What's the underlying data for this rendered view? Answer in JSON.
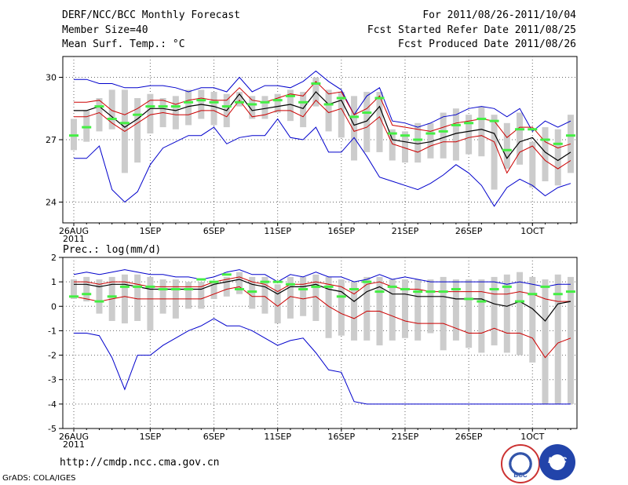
{
  "header": {
    "title": "DERF/NCC/BCC Monthly Forecast",
    "member_size": "Member Size=40",
    "variable": "Mean Surf. Temp.: °C",
    "period": "For 2011/08/26-2011/10/04",
    "started": "Fcst Started Refer Date 2011/08/25",
    "produced": "Fcst Produced Date 2011/08/26"
  },
  "footer": {
    "url": "http://cmdp.ncc.cma.gov.cn",
    "credit": "GrADS: COLA/IGES"
  },
  "logos": {
    "left": "BCC",
    "right": "NCC"
  },
  "colors": {
    "max_min": "#0000cc",
    "spread": "#cc0000",
    "mean": "#000000",
    "green": "#44ee44",
    "box": "#cccccc"
  },
  "chart_data": [
    {
      "type": "ensemble-plume",
      "title": "Mean Surf. Temp.: °C",
      "x_tick_labels": [
        "26AUG\n2011",
        "1SEP",
        "6SEP",
        "11SEP",
        "16SEP",
        "21SEP",
        "26SEP",
        "1OCT"
      ],
      "x_tick_days": [
        0,
        6,
        11,
        16,
        21,
        26,
        31,
        36
      ],
      "ylim": [
        23,
        31
      ],
      "y_ticks": [
        24,
        27,
        30
      ],
      "days": 40,
      "series": [
        {
          "name": "max",
          "values": [
            29.9,
            29.9,
            29.7,
            29.7,
            29.5,
            29.5,
            29.6,
            29.6,
            29.5,
            29.3,
            29.5,
            29.5,
            29.3,
            30.0,
            29.3,
            29.6,
            29.6,
            29.5,
            29.8,
            30.3,
            29.8,
            29.4,
            28.2,
            29.1,
            29.5,
            27.9,
            27.8,
            27.6,
            27.8,
            28.1,
            28.2,
            28.5,
            28.6,
            28.5,
            28.1,
            28.5,
            27.4,
            27.9,
            27.6,
            27.9
          ]
        },
        {
          "name": "spread_upper",
          "values": [
            28.8,
            28.8,
            28.9,
            28.4,
            28.2,
            28.5,
            28.9,
            28.9,
            28.7,
            28.9,
            29.0,
            28.9,
            28.9,
            29.5,
            28.9,
            28.8,
            29.0,
            29.2,
            29.1,
            29.8,
            29.2,
            29.3,
            28.2,
            28.5,
            29.1,
            27.7,
            27.6,
            27.5,
            27.4,
            27.6,
            27.8,
            27.9,
            28.0,
            27.9,
            27.1,
            27.6,
            27.6,
            26.9,
            26.6,
            26.8
          ]
        },
        {
          "name": "mean",
          "values": [
            28.4,
            28.4,
            28.6,
            28.1,
            27.6,
            28.0,
            28.5,
            28.5,
            28.4,
            28.6,
            28.7,
            28.6,
            28.4,
            29.2,
            28.4,
            28.5,
            28.6,
            28.7,
            28.5,
            29.3,
            28.7,
            28.9,
            27.7,
            27.9,
            28.6,
            27.0,
            26.9,
            26.8,
            26.9,
            27.1,
            27.3,
            27.4,
            27.5,
            27.3,
            26.1,
            26.9,
            27.1,
            26.4,
            26.0,
            26.4
          ]
        },
        {
          "name": "spread_lower",
          "values": [
            28.1,
            28.1,
            28.3,
            27.8,
            27.4,
            27.8,
            28.2,
            28.3,
            28.2,
            28.2,
            28.4,
            28.4,
            28.1,
            28.9,
            28.1,
            28.2,
            28.4,
            28.4,
            28.1,
            28.9,
            28.3,
            28.5,
            27.4,
            27.6,
            28.1,
            26.8,
            26.6,
            26.4,
            26.7,
            26.9,
            26.9,
            27.1,
            27.2,
            26.9,
            25.4,
            26.4,
            26.7,
            26.0,
            25.6,
            26.0
          ]
        },
        {
          "name": "min",
          "values": [
            26.1,
            26.1,
            26.7,
            24.6,
            24.0,
            24.5,
            25.8,
            26.6,
            26.9,
            27.2,
            27.2,
            27.6,
            26.8,
            27.1,
            27.2,
            27.2,
            28.0,
            27.1,
            27.0,
            27.6,
            26.4,
            26.4,
            27.1,
            26.2,
            25.2,
            25.0,
            24.8,
            24.6,
            24.9,
            25.3,
            25.8,
            25.4,
            24.8,
            23.8,
            24.7,
            25.1,
            24.8,
            24.3,
            24.7,
            24.9
          ]
        },
        {
          "name": "observed_or_reference",
          "values": [
            27.2,
            27.6,
            28.6,
            28.0,
            27.8,
            28.2,
            28.6,
            28.6,
            28.6,
            28.8,
            28.9,
            28.8,
            28.6,
            28.8,
            28.7,
            28.8,
            28.9,
            29.1,
            28.8,
            29.7,
            28.7,
            29.0,
            28.1,
            28.3,
            29.0,
            27.3,
            27.2,
            27.0,
            27.3,
            27.4,
            27.7,
            27.8,
            28.0,
            27.9,
            26.5,
            27.5,
            27.5,
            27.0,
            26.8,
            27.2
          ]
        },
        {
          "name": "box_upper",
          "values": [
            28.0,
            28.4,
            29.0,
            29.4,
            29.4,
            29.0,
            29.2,
            29.0,
            29.1,
            29.4,
            29.4,
            29.3,
            29.2,
            29.3,
            29.1,
            29.1,
            29.2,
            29.4,
            29.3,
            30.0,
            29.4,
            29.3,
            29.1,
            29.3,
            29.3,
            27.5,
            27.4,
            27.8,
            27.8,
            28.3,
            28.5,
            28.2,
            28.6,
            28.2,
            27.8,
            28.3,
            26.9,
            27.6,
            27.5,
            28.2
          ]
        },
        {
          "name": "box_lower",
          "values": [
            26.5,
            26.9,
            27.4,
            27.5,
            25.4,
            25.9,
            27.3,
            27.6,
            27.5,
            27.7,
            28.0,
            27.7,
            27.6,
            28.6,
            28.0,
            28.0,
            28.3,
            27.9,
            27.6,
            28.6,
            27.4,
            27.1,
            26.0,
            26.4,
            26.4,
            26.0,
            25.9,
            25.9,
            26.1,
            26.1,
            26.0,
            26.3,
            26.2,
            24.6,
            25.6,
            25.8,
            24.7,
            25.0,
            24.8,
            25.4
          ]
        }
      ]
    },
    {
      "type": "ensemble-plume",
      "title": "Prec.: log(mm/d)",
      "x_tick_labels": [
        "26AUG\n2011",
        "1SEP",
        "6SEP",
        "11SEP",
        "16SEP",
        "21SEP",
        "26SEP",
        "1OCT"
      ],
      "x_tick_days": [
        0,
        6,
        11,
        16,
        21,
        26,
        31,
        36
      ],
      "ylim": [
        -5,
        2
      ],
      "y_ticks": [
        -5,
        -4,
        -3,
        -2,
        -1,
        0,
        1,
        2
      ],
      "days": 40,
      "series": [
        {
          "name": "max",
          "values": [
            1.3,
            1.4,
            1.3,
            1.4,
            1.5,
            1.4,
            1.3,
            1.3,
            1.2,
            1.2,
            1.1,
            1.2,
            1.4,
            1.5,
            1.3,
            1.3,
            1.0,
            1.3,
            1.2,
            1.4,
            1.2,
            1.2,
            1.0,
            1.1,
            1.3,
            1.1,
            1.2,
            1.1,
            1.0,
            1.0,
            1.0,
            1.0,
            1.0,
            1.0,
            0.9,
            1.0,
            0.9,
            0.8,
            0.9,
            0.9
          ]
        },
        {
          "name": "spread_upper",
          "values": [
            1.0,
            1.0,
            0.9,
            1.0,
            1.0,
            0.9,
            0.8,
            0.8,
            0.8,
            0.8,
            0.8,
            1.0,
            1.1,
            1.2,
            1.0,
            0.9,
            0.6,
            0.9,
            0.9,
            1.0,
            0.9,
            0.8,
            0.5,
            0.9,
            1.0,
            0.8,
            0.7,
            0.7,
            0.6,
            0.6,
            0.6,
            0.6,
            0.6,
            0.5,
            0.5,
            0.6,
            0.5,
            0.3,
            0.2,
            0.2
          ]
        },
        {
          "name": "mean",
          "values": [
            0.9,
            0.9,
            0.8,
            0.9,
            0.9,
            0.8,
            0.7,
            0.7,
            0.7,
            0.7,
            0.7,
            0.9,
            1.0,
            1.1,
            0.9,
            0.8,
            0.5,
            0.8,
            0.8,
            0.9,
            0.7,
            0.6,
            0.2,
            0.6,
            0.8,
            0.5,
            0.5,
            0.4,
            0.4,
            0.4,
            0.3,
            0.3,
            0.3,
            0.1,
            0.0,
            0.2,
            -0.1,
            -0.6,
            0.1,
            0.2
          ]
        },
        {
          "name": "spread_lower",
          "values": [
            0.4,
            0.3,
            0.2,
            0.3,
            0.4,
            0.3,
            0.3,
            0.3,
            0.3,
            0.3,
            0.3,
            0.5,
            0.7,
            0.8,
            0.4,
            0.4,
            0.0,
            0.4,
            0.3,
            0.4,
            0.0,
            -0.3,
            -0.5,
            -0.2,
            -0.2,
            -0.4,
            -0.6,
            -0.7,
            -0.7,
            -0.7,
            -0.9,
            -1.1,
            -1.1,
            -0.9,
            -1.1,
            -1.1,
            -1.3,
            -2.1,
            -1.5,
            -1.3
          ]
        },
        {
          "name": "min",
          "values": [
            -1.1,
            -1.1,
            -1.2,
            -2.1,
            -3.4,
            -2.0,
            -2.0,
            -1.6,
            -1.3,
            -1.0,
            -0.8,
            -0.5,
            -0.8,
            -0.8,
            -1.0,
            -1.3,
            -1.6,
            -1.4,
            -1.3,
            -1.9,
            -2.6,
            -2.7,
            -3.9,
            -4.0,
            -4.0,
            -4.0,
            -4.0,
            -4.0,
            -4.0,
            -4.0,
            -4.0,
            -4.0,
            -4.0,
            -4.0,
            -4.0,
            -4.0,
            -4.0,
            -4.0,
            -4.0,
            -4.0
          ]
        },
        {
          "name": "observed_or_reference",
          "values": [
            0.4,
            0.5,
            0.2,
            0.4,
            0.8,
            0.8,
            0.8,
            0.7,
            0.7,
            0.7,
            1.1,
            1.0,
            1.3,
            0.7,
            0.6,
            1.0,
            1.0,
            0.9,
            0.7,
            0.8,
            0.8,
            0.4,
            0.7,
            1.0,
            0.6,
            0.8,
            0.7,
            0.6,
            0.6,
            0.6,
            0.7,
            0.3,
            0.2,
            0.7,
            0.8,
            0.2,
            0.5,
            0.8,
            0.5,
            0.6
          ]
        },
        {
          "name": "box_upper",
          "values": [
            1.1,
            1.2,
            1.1,
            1.2,
            1.3,
            1.3,
            1.2,
            1.1,
            1.1,
            1.0,
            1.0,
            1.0,
            1.2,
            1.4,
            1.2,
            1.2,
            0.9,
            1.2,
            1.2,
            1.3,
            1.2,
            1.1,
            1.0,
            1.2,
            1.2,
            1.1,
            1.1,
            1.1,
            1.1,
            1.2,
            1.1,
            1.1,
            1.1,
            1.2,
            1.3,
            1.4,
            1.2,
            1.1,
            1.3,
            1.2
          ]
        },
        {
          "name": "box_lower",
          "values": [
            0.3,
            0.2,
            -0.3,
            -0.6,
            -0.7,
            -0.6,
            -1.0,
            -0.3,
            -0.5,
            -0.1,
            -0.1,
            0.3,
            0.4,
            0.5,
            -0.1,
            -0.3,
            -0.7,
            -0.5,
            -0.4,
            -0.6,
            -1.3,
            -1.2,
            -1.4,
            -1.4,
            -1.6,
            -1.4,
            -1.3,
            -1.4,
            -1.1,
            -1.8,
            -1.4,
            -1.7,
            -1.9,
            -1.6,
            -1.9,
            -2.0,
            -2.3,
            -4.0,
            -4.0,
            -4.0
          ]
        }
      ]
    }
  ]
}
